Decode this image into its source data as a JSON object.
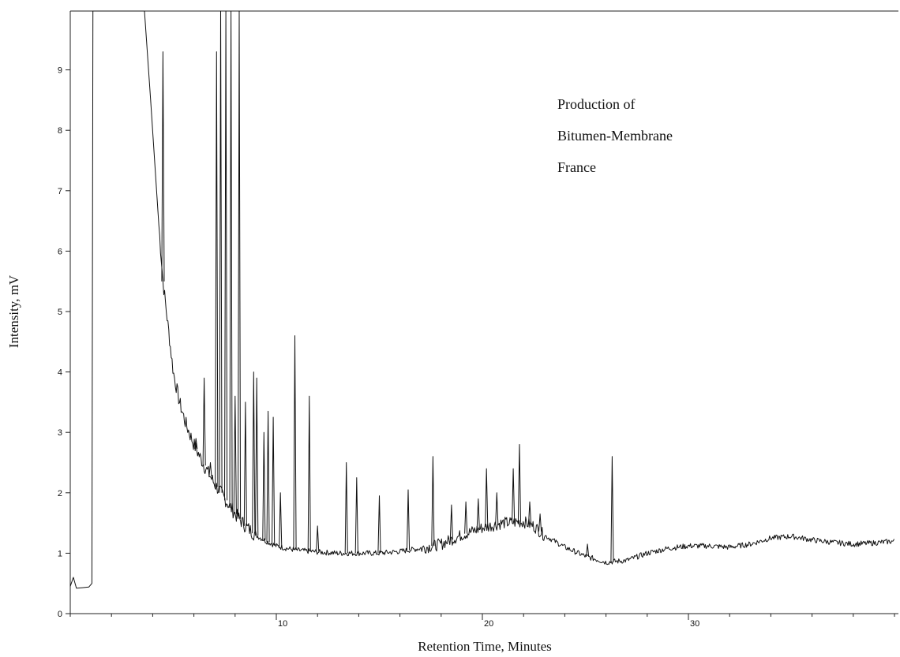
{
  "chart_data": {
    "type": "line",
    "title": "",
    "xlabel": "Retention Time, Minutes",
    "ylabel": "Intensity, mV",
    "xlim": [
      0,
      40
    ],
    "ylim": [
      0,
      10
    ],
    "grid": false,
    "x_ticks": [
      10,
      20,
      30
    ],
    "y_ticks": [
      0,
      1,
      2,
      3,
      4,
      5,
      6,
      7,
      8,
      9
    ],
    "annotations": [
      "Production of",
      "Bitumen-Membrane",
      "France"
    ],
    "baseline": [
      [
        0.0,
        0.45
      ],
      [
        0.15,
        0.6
      ],
      [
        0.3,
        0.42
      ],
      [
        0.6,
        0.43
      ],
      [
        0.9,
        0.44
      ],
      [
        1.05,
        0.5
      ],
      [
        1.1,
        10
      ],
      [
        3.6,
        10
      ],
      [
        3.9,
        8.5
      ],
      [
        4.2,
        6.9
      ],
      [
        4.5,
        5.5
      ],
      [
        4.6,
        5.2
      ],
      [
        4.8,
        4.6
      ],
      [
        5.0,
        4.0
      ],
      [
        5.3,
        3.5
      ],
      [
        5.6,
        3.15
      ],
      [
        6.0,
        2.8
      ],
      [
        6.5,
        2.45
      ],
      [
        7.0,
        2.15
      ],
      [
        7.5,
        1.9
      ],
      [
        8.0,
        1.65
      ],
      [
        8.5,
        1.45
      ],
      [
        9.0,
        1.3
      ],
      [
        9.5,
        1.2
      ],
      [
        10.0,
        1.12
      ],
      [
        10.5,
        1.08
      ],
      [
        11.0,
        1.05
      ],
      [
        12.0,
        1.02
      ],
      [
        13.0,
        1.0
      ],
      [
        14.0,
        1.0
      ],
      [
        15.0,
        1.0
      ],
      [
        16.0,
        1.03
      ],
      [
        17.0,
        1.08
      ],
      [
        18.0,
        1.15
      ],
      [
        19.0,
        1.3
      ],
      [
        20.0,
        1.42
      ],
      [
        21.0,
        1.5
      ],
      [
        22.0,
        1.52
      ],
      [
        22.5,
        1.45
      ],
      [
        23.0,
        1.3
      ],
      [
        24.0,
        1.1
      ],
      [
        25.0,
        0.95
      ],
      [
        26.0,
        0.85
      ],
      [
        27.0,
        0.88
      ],
      [
        28.0,
        1.0
      ],
      [
        29.0,
        1.08
      ],
      [
        30.0,
        1.12
      ],
      [
        31.0,
        1.12
      ],
      [
        32.0,
        1.1
      ],
      [
        33.0,
        1.15
      ],
      [
        34.0,
        1.25
      ],
      [
        35.0,
        1.28
      ],
      [
        36.0,
        1.22
      ],
      [
        37.0,
        1.18
      ],
      [
        38.0,
        1.15
      ],
      [
        39.0,
        1.17
      ],
      [
        40.0,
        1.2
      ]
    ],
    "peaks": [
      [
        4.5,
        9.3
      ],
      [
        6.1,
        2.9
      ],
      [
        6.5,
        3.9
      ],
      [
        6.8,
        2.5
      ],
      [
        7.1,
        9.3
      ],
      [
        7.3,
        10
      ],
      [
        7.55,
        10
      ],
      [
        7.8,
        10
      ],
      [
        8.0,
        3.6
      ],
      [
        8.2,
        10
      ],
      [
        8.5,
        3.5
      ],
      [
        8.9,
        4.0
      ],
      [
        9.05,
        3.9
      ],
      [
        9.4,
        3.0
      ],
      [
        9.6,
        3.35
      ],
      [
        9.85,
        3.25
      ],
      [
        10.2,
        2.0
      ],
      [
        10.9,
        4.6
      ],
      [
        11.6,
        3.6
      ],
      [
        12.0,
        1.45
      ],
      [
        13.4,
        2.5
      ],
      [
        13.9,
        2.25
      ],
      [
        15.0,
        1.95
      ],
      [
        16.4,
        2.05
      ],
      [
        17.6,
        2.6
      ],
      [
        18.5,
        1.8
      ],
      [
        19.2,
        1.85
      ],
      [
        19.8,
        1.9
      ],
      [
        20.2,
        2.4
      ],
      [
        20.7,
        2.0
      ],
      [
        21.5,
        2.4
      ],
      [
        21.8,
        2.8
      ],
      [
        22.3,
        1.85
      ],
      [
        22.8,
        1.65
      ],
      [
        25.1,
        1.15
      ],
      [
        26.3,
        2.6
      ]
    ]
  }
}
